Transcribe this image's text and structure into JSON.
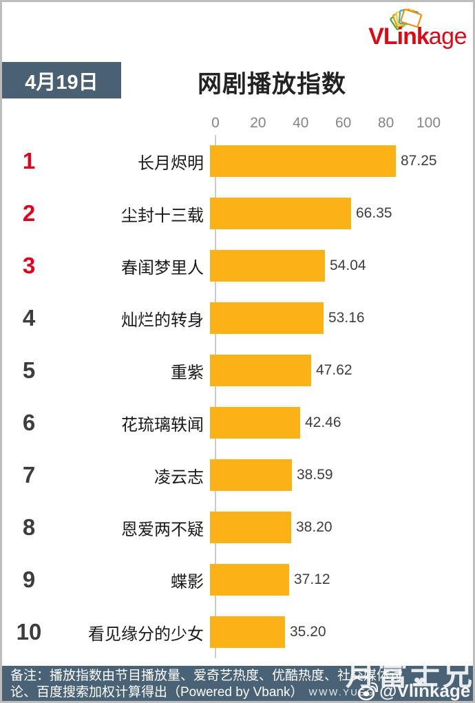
{
  "brand": {
    "name_bold": "VLink",
    "name_tail": "age",
    "icon": "card-fan-icon",
    "color": "#e30613"
  },
  "header": {
    "date_badge": "4月19日",
    "title": "网剧播放指数"
  },
  "chart_data": {
    "type": "bar",
    "orientation": "horizontal",
    "title": "网剧播放指数",
    "date": "4月19日",
    "categories": [
      "长月烬明",
      "尘封十三载",
      "春闺梦里人",
      "灿烂的转身",
      "重紫",
      "花琉璃轶闻",
      "凌云志",
      "恩爱两不疑",
      "蝶影",
      "看见缘分的少女"
    ],
    "values": [
      87.25,
      66.35,
      54.04,
      53.16,
      47.62,
      42.46,
      38.59,
      38.2,
      37.12,
      35.2
    ],
    "value_labels": [
      "87.25",
      "66.35",
      "54.04",
      "53.16",
      "47.62",
      "42.46",
      "38.59",
      "38.20",
      "37.12",
      "35.20"
    ],
    "ranks": [
      1,
      2,
      3,
      4,
      5,
      6,
      7,
      8,
      9,
      10
    ],
    "x_ticks": [
      0,
      20,
      40,
      60,
      80,
      100
    ],
    "xlim": [
      0,
      100
    ],
    "grid": false,
    "legend": false,
    "bar_color": "#fbb216",
    "rank_top3_color": "#e60019",
    "rank_color": "#3d3d3d"
  },
  "footer": {
    "note_line1": "备注：播放指数由节目播放量、爱奇艺热度、优酷热度、社交媒体讨",
    "note_line2": "论、百度搜索加权计算得出（Powered by Vbank）",
    "url_text": "WWW.YUEG",
    "background": "#4a6275"
  },
  "watermark": {
    "username": "月富士兄",
    "heart": "❤",
    "weibo_handle": "@Vlinkage",
    "icon": "weibo-icon"
  },
  "colors": {
    "slate": "#4a6173",
    "bar": "#fbb216",
    "rank_highlight": "#e60019",
    "logo_red": "#e30613",
    "tick_gray": "#848484",
    "value_gray": "#3d3d3d"
  }
}
